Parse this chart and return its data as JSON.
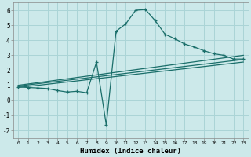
{
  "xlabel": "Humidex (Indice chaleur)",
  "background_color": "#cce9ea",
  "grid_color": "#aad4d6",
  "line_color": "#1a6e6a",
  "xlim": [
    -0.5,
    23.5
  ],
  "ylim": [
    -2.5,
    6.5
  ],
  "yticks": [
    -2,
    -1,
    0,
    1,
    2,
    3,
    4,
    5,
    6
  ],
  "xticks": [
    0,
    1,
    2,
    3,
    4,
    5,
    6,
    7,
    8,
    9,
    10,
    11,
    12,
    13,
    14,
    15,
    16,
    17,
    18,
    19,
    20,
    21,
    22,
    23
  ],
  "line1_x": [
    0,
    1,
    2,
    3,
    4,
    5,
    6,
    7,
    8,
    9,
    10,
    11,
    12,
    13,
    14,
    15,
    16,
    17,
    18,
    19,
    20,
    21,
    22,
    23
  ],
  "line1_y": [
    0.9,
    0.85,
    0.82,
    0.78,
    0.65,
    0.55,
    0.6,
    0.5,
    2.55,
    -1.65,
    4.6,
    5.1,
    6.0,
    6.05,
    5.3,
    4.4,
    4.1,
    3.75,
    3.55,
    3.3,
    3.1,
    3.0,
    2.75,
    2.75
  ],
  "line2_x": [
    0,
    23
  ],
  "line2_y": [
    1.0,
    3.0
  ],
  "line3_x": [
    0,
    23
  ],
  "line3_y": [
    0.95,
    2.72
  ],
  "line4_x": [
    0,
    23
  ],
  "line4_y": [
    0.85,
    2.55
  ]
}
